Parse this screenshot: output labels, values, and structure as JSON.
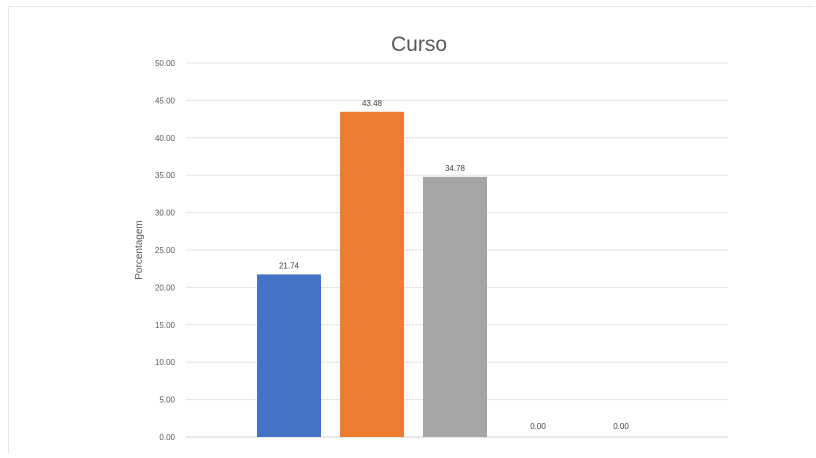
{
  "chart_data": {
    "type": "bar",
    "title": "Curso",
    "xlabel": "",
    "ylabel": "Porcentagem",
    "ylim": [
      0,
      50
    ],
    "ytick_step": 5,
    "ytick_labels": [
      "0.00",
      "5.00",
      "10.00",
      "15.00",
      "20.00",
      "25.00",
      "30.00",
      "35.00",
      "40.00",
      "45.00",
      "50.00"
    ],
    "categories": [
      "",
      "",
      "",
      "",
      ""
    ],
    "values": [
      21.74,
      43.48,
      34.78,
      0.0,
      0.0
    ],
    "data_labels": [
      "21.74",
      "43.48",
      "34.78",
      "0.00",
      "0.00"
    ],
    "colors": [
      "#4472C4",
      "#ED7D31",
      "#A5A5A5",
      "#FFC000",
      "#5B9BD5"
    ],
    "grid": true,
    "legend": "none"
  }
}
